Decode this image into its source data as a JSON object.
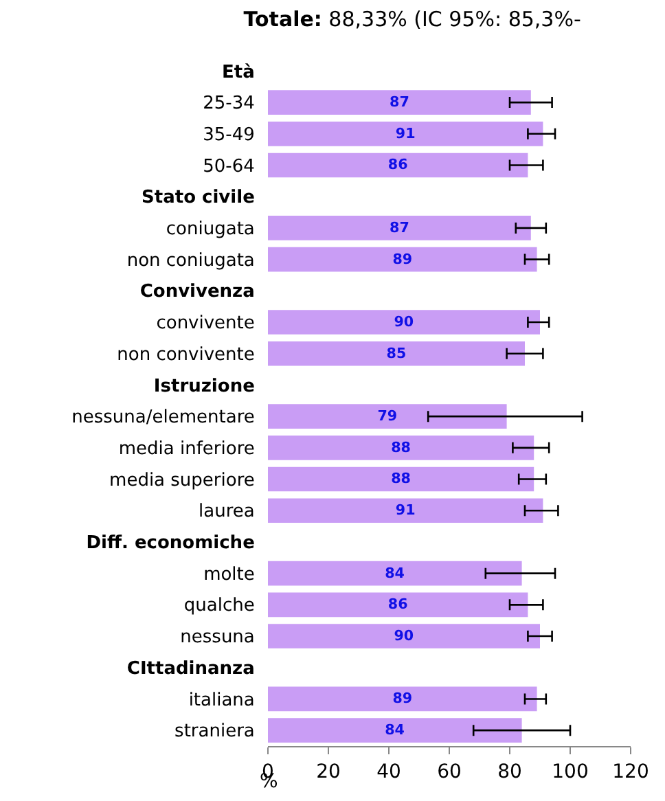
{
  "chart_data": {
    "type": "bar",
    "orientation": "horizontal",
    "title": "Totale: 88,33% (IC 95%: 85,3%-",
    "xlabel": "%",
    "categories": [
      "Età",
      "25-34",
      "35-49",
      "50-64",
      "Stato civile",
      "coniugata",
      "non coniugata",
      "Convivenza",
      "convivente",
      "non convivente",
      "Istruzione",
      "nessuna/elementare",
      "media inferiore",
      "media superiore",
      "laurea",
      "Diff. economiche",
      "molte",
      "qualche",
      "nessuna",
      "CIttadinanza",
      "italiana",
      "straniera"
    ],
    "values": [
      null,
      87,
      91,
      86,
      null,
      87,
      89,
      null,
      90,
      85,
      null,
      79,
      88,
      88,
      91,
      null,
      84,
      86,
      90,
      null,
      89,
      84
    ],
    "errors": [
      null,
      [
        80,
        94
      ],
      [
        86,
        95
      ],
      [
        80,
        91
      ],
      null,
      [
        82,
        92
      ],
      [
        85,
        93
      ],
      null,
      [
        86,
        93
      ],
      [
        79,
        91
      ],
      null,
      [
        53,
        104
      ],
      [
        81,
        93
      ],
      [
        83,
        92
      ],
      [
        85,
        96
      ],
      null,
      [
        72,
        95
      ],
      [
        80,
        91
      ],
      [
        86,
        94
      ],
      null,
      [
        85,
        92
      ],
      [
        68,
        100
      ]
    ],
    "color": "#c99df5",
    "data_labels": true,
    "xlim": [
      0,
      120
    ],
    "xticks": [
      0,
      20,
      40,
      60,
      80,
      100,
      120
    ]
  }
}
